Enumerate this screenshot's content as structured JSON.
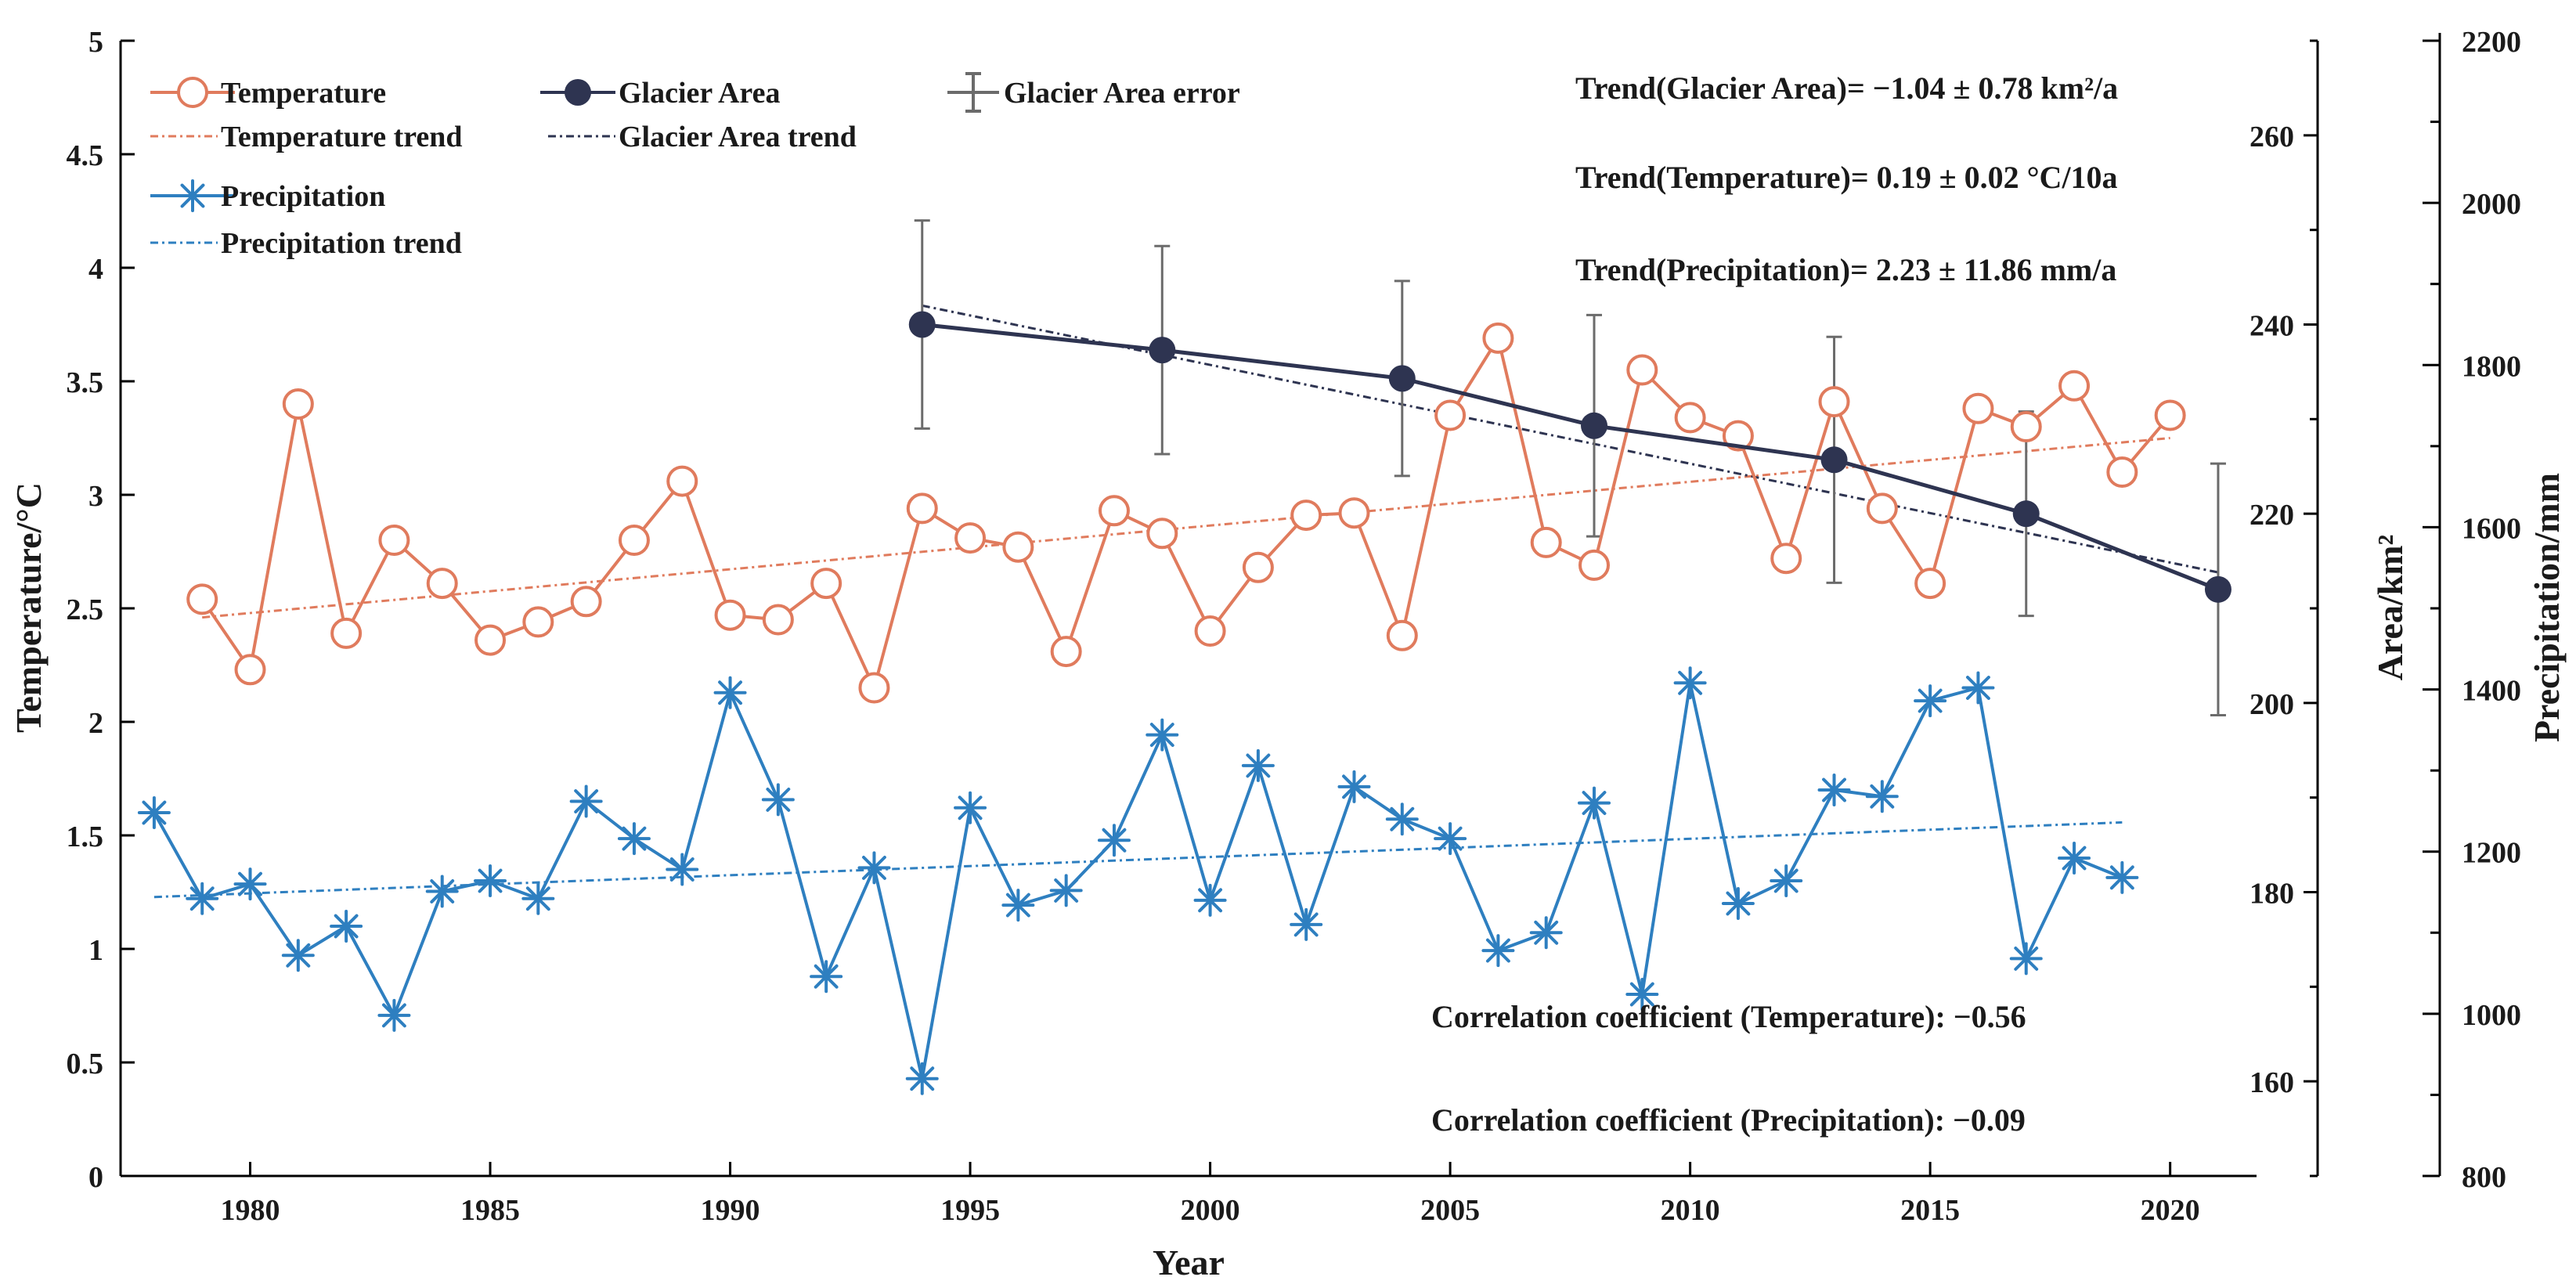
{
  "chart_data": {
    "type": "line",
    "title": "",
    "xlabel": "Year",
    "xlim": [
      1977.3,
      2021.8
    ],
    "xticks": [
      1980,
      1985,
      1990,
      1995,
      2000,
      2005,
      2010,
      2015,
      2020
    ],
    "axes": {
      "left": {
        "label": "Temperature/°C",
        "lim": [
          0,
          5
        ],
        "ticks": [
          0,
          0.5,
          1,
          1.5,
          2,
          2.5,
          3,
          3.5,
          4,
          4.5,
          5
        ],
        "tick_labels": [
          "0",
          "0.5",
          "1",
          "1.5",
          "2",
          "2.5",
          "3",
          "3.5",
          "4",
          "4.5",
          "5"
        ]
      },
      "area": {
        "label": "Area/km²",
        "lim": [
          150,
          270
        ],
        "ticks": [
          160,
          180,
          200,
          220,
          240,
          260
        ]
      },
      "precip": {
        "label": "Precipitation/mm",
        "lim": [
          800,
          2200
        ],
        "ticks": [
          800,
          1000,
          1200,
          1400,
          1600,
          1800,
          2000,
          2200
        ]
      }
    },
    "series": [
      {
        "name": "Temperature",
        "axis": "left",
        "color": "#e07b5d",
        "marker": "circle",
        "x": [
          1979,
          1980,
          1981,
          1982,
          1983,
          1984,
          1985,
          1986,
          1987,
          1988,
          1989,
          1990,
          1991,
          1992,
          1993,
          1994,
          1995,
          1996,
          1997,
          1998,
          1999,
          2000,
          2001,
          2002,
          2003,
          2004,
          2005,
          2006,
          2007,
          2008,
          2009,
          2010,
          2011,
          2012,
          2013,
          2014,
          2015,
          2016,
          2017,
          2018,
          2019,
          2020
        ],
        "values": [
          2.54,
          2.23,
          3.4,
          2.39,
          2.8,
          2.61,
          2.36,
          2.44,
          2.53,
          2.8,
          3.06,
          2.47,
          2.45,
          2.61,
          2.15,
          2.94,
          2.81,
          2.77,
          2.31,
          2.93,
          2.83,
          2.4,
          2.68,
          2.91,
          2.92,
          2.38,
          3.35,
          3.69,
          2.79,
          2.69,
          3.55,
          3.34,
          3.26,
          2.72,
          3.41,
          2.94,
          2.61,
          3.38,
          3.3,
          3.48,
          3.1,
          3.35
        ]
      },
      {
        "name": "Glacier Area",
        "axis": "area",
        "color": "#2e3451",
        "marker": "filled-circle",
        "x": [
          1994,
          1999,
          2004,
          2008,
          2013,
          2017,
          2021
        ],
        "values": [
          240.0,
          237.3,
          234.3,
          229.3,
          225.7,
          220.0,
          212.0
        ],
        "error": [
          11.0,
          11.0,
          10.3,
          11.7,
          13.0,
          10.8,
          13.3
        ]
      },
      {
        "name": "Precipitation",
        "axis": "precip",
        "color": "#2e7fc0",
        "marker": "asterisk",
        "x": [
          1978,
          1979,
          1980,
          1981,
          1982,
          1983,
          1984,
          1985,
          1986,
          1987,
          1988,
          1989,
          1990,
          1991,
          1992,
          1993,
          1994,
          1995,
          1996,
          1997,
          1998,
          1999,
          2000,
          2001,
          2002,
          2003,
          2004,
          2005,
          2006,
          2007,
          2008,
          2009,
          2010,
          2011,
          2012,
          2013,
          2014,
          2015,
          2016,
          2017,
          2018,
          2019
        ],
        "values": [
          1248,
          1142,
          1160,
          1072,
          1108,
          998,
          1151,
          1164,
          1142,
          1262,
          1216,
          1178,
          1396,
          1264,
          1046,
          1180,
          920,
          1254,
          1134,
          1152,
          1214,
          1344,
          1140,
          1306,
          1110,
          1280,
          1240,
          1216,
          1078,
          1100,
          1260,
          1024,
          1408,
          1136,
          1164,
          1276,
          1268,
          1386,
          1402,
          1068,
          1192,
          1168
        ]
      }
    ],
    "trends": [
      {
        "name": "Temperature trend",
        "axis": "left",
        "color": "#e07b5d",
        "x": [
          1979,
          2020
        ],
        "values": [
          2.46,
          3.25
        ]
      },
      {
        "name": "Glacier Area trend",
        "axis": "area",
        "color": "#2e3451",
        "x": [
          1994,
          2021
        ],
        "values": [
          242.0,
          213.8
        ]
      },
      {
        "name": "Precipitation trend",
        "axis": "precip",
        "color": "#2e7fc0",
        "x": [
          1978,
          2019
        ],
        "values": [
          1144,
          1236
        ]
      }
    ],
    "legend": {
      "temperature": "Temperature",
      "glacier_area": "Glacier Area",
      "glacier_area_error": "Glacier Area error",
      "temperature_trend": "Temperature trend",
      "glacier_area_trend": "Glacier Area trend",
      "precipitation": "Precipitation",
      "precipitation_trend": "Precipitation trend",
      "placement": "top-left"
    },
    "annotations": {
      "trend_area": "Trend(Glacier Area)= −1.04 ± 0.78 km²/a",
      "trend_temp": "Trend(Temperature)= 0.19 ± 0.02 °C/10a",
      "trend_precip": "Trend(Precipitation)= 2.23 ± 11.86 mm/a",
      "corr_temp": "Correlation coefficient (Temperature): −0.56",
      "corr_precip": "Correlation coefficient (Precipitation): −0.09"
    },
    "colors": {
      "axis": "#000000",
      "error_bar": "#6b6b6b"
    }
  }
}
